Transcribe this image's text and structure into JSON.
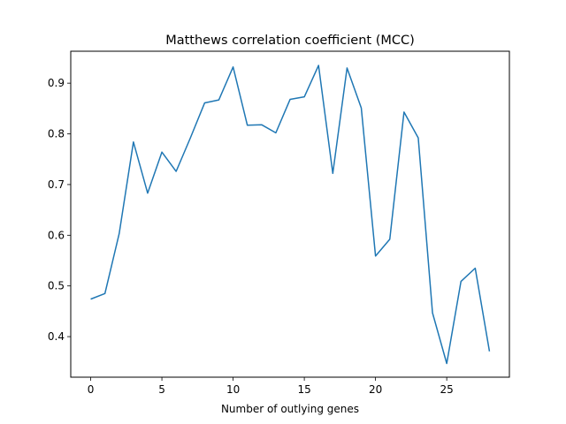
{
  "chart_data": {
    "type": "line",
    "title": "Matthews correlation coefficient (MCC)",
    "xlabel": "Number of outlying genes",
    "ylabel": "",
    "xlim": [
      -1.4,
      29.4
    ],
    "ylim": [
      0.32,
      0.963
    ],
    "xticks": [
      0,
      5,
      10,
      15,
      20,
      25
    ],
    "yticks": [
      0.4,
      0.5,
      0.6,
      0.7,
      0.8,
      0.9
    ],
    "ytick_labels": [
      "0.4",
      "0.5",
      "0.6",
      "0.7",
      "0.8",
      "0.9"
    ],
    "grid": false,
    "series": [
      {
        "color": "#1f77b4",
        "x": [
          0,
          1,
          2,
          3,
          4,
          5,
          6,
          7,
          8,
          9,
          10,
          11,
          12,
          13,
          14,
          15,
          16,
          17,
          18,
          19,
          20,
          21,
          22,
          23,
          24,
          25,
          26,
          27,
          28
        ],
        "values": [
          0.474,
          0.485,
          0.603,
          0.784,
          0.683,
          0.764,
          0.726,
          0.792,
          0.861,
          0.867,
          0.932,
          0.817,
          0.818,
          0.802,
          0.868,
          0.873,
          0.935,
          0.722,
          0.93,
          0.851,
          0.559,
          0.592,
          0.843,
          0.792,
          0.447,
          0.347,
          0.509,
          0.535,
          0.371
        ]
      }
    ]
  }
}
